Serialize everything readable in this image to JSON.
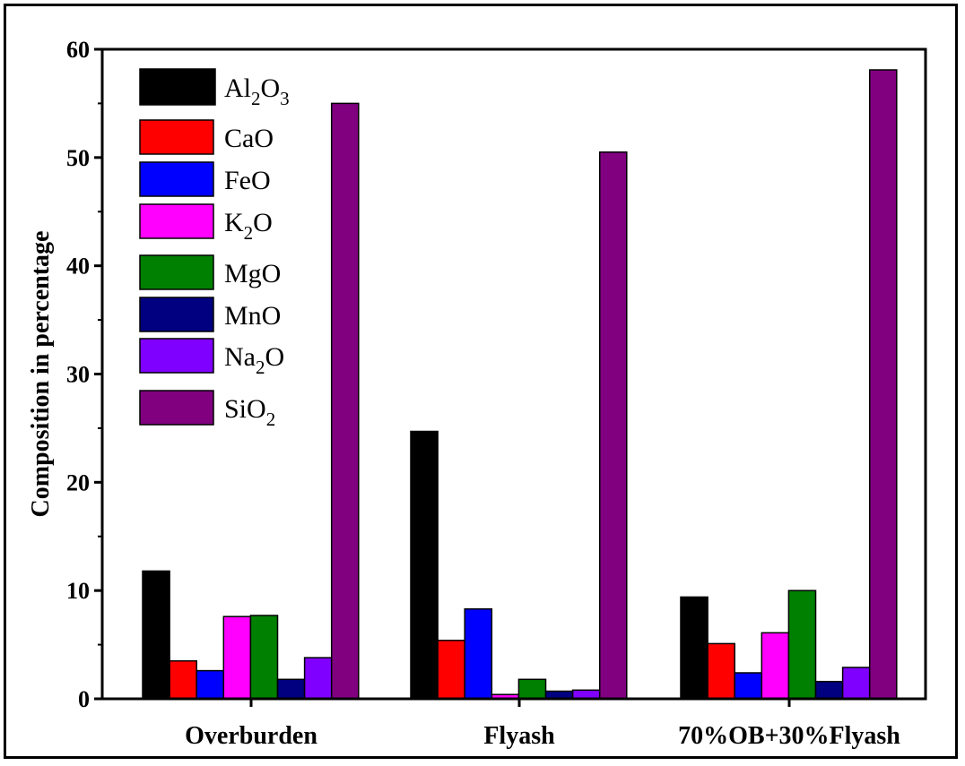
{
  "chart_data": {
    "type": "bar",
    "title": "",
    "xlabel": "",
    "ylabel": "Composition in percentage",
    "ylim": [
      0,
      60
    ],
    "yticks": [
      0,
      10,
      20,
      30,
      40,
      50,
      60
    ],
    "grid": false,
    "legend_position": "top-left",
    "categories": [
      "Overburden",
      "Flyash",
      "70%OB+30%Flyash"
    ],
    "series": [
      {
        "name": "Al2O3",
        "label_main": "Al",
        "label_parts": [
          [
            "Al",
            ""
          ],
          [
            "2",
            "sub"
          ],
          [
            "O",
            ""
          ],
          [
            "3",
            "sub"
          ]
        ],
        "color": "#000000",
        "values": [
          11.8,
          24.7,
          9.4
        ]
      },
      {
        "name": "CaO",
        "label_parts": [
          [
            "CaO",
            ""
          ]
        ],
        "color": "#ff0000",
        "values": [
          3.5,
          5.4,
          5.1
        ]
      },
      {
        "name": "FeO",
        "label_parts": [
          [
            "FeO",
            ""
          ]
        ],
        "color": "#0000ff",
        "values": [
          2.6,
          8.3,
          2.4
        ]
      },
      {
        "name": "K2O",
        "label_parts": [
          [
            "K",
            ""
          ],
          [
            "2",
            "sub"
          ],
          [
            "O",
            ""
          ]
        ],
        "color": "#ff00ff",
        "values": [
          7.6,
          0.4,
          6.1
        ]
      },
      {
        "name": "MgO",
        "label_parts": [
          [
            "MgO",
            ""
          ]
        ],
        "color": "#008000",
        "values": [
          7.7,
          1.8,
          10.0
        ]
      },
      {
        "name": "MnO",
        "label_parts": [
          [
            "MnO",
            ""
          ]
        ],
        "color": "#000080",
        "values": [
          1.8,
          0.7,
          1.6
        ]
      },
      {
        "name": "Na2O",
        "label_parts": [
          [
            "Na",
            ""
          ],
          [
            "2",
            "sub"
          ],
          [
            "O",
            ""
          ]
        ],
        "color": "#8000ff",
        "values": [
          3.8,
          0.8,
          2.9
        ]
      },
      {
        "name": "SiO2",
        "label_parts": [
          [
            "SiO",
            ""
          ],
          [
            "2",
            "sub"
          ]
        ],
        "color": "#800080",
        "values": [
          55.0,
          50.5,
          58.1
        ]
      }
    ]
  }
}
